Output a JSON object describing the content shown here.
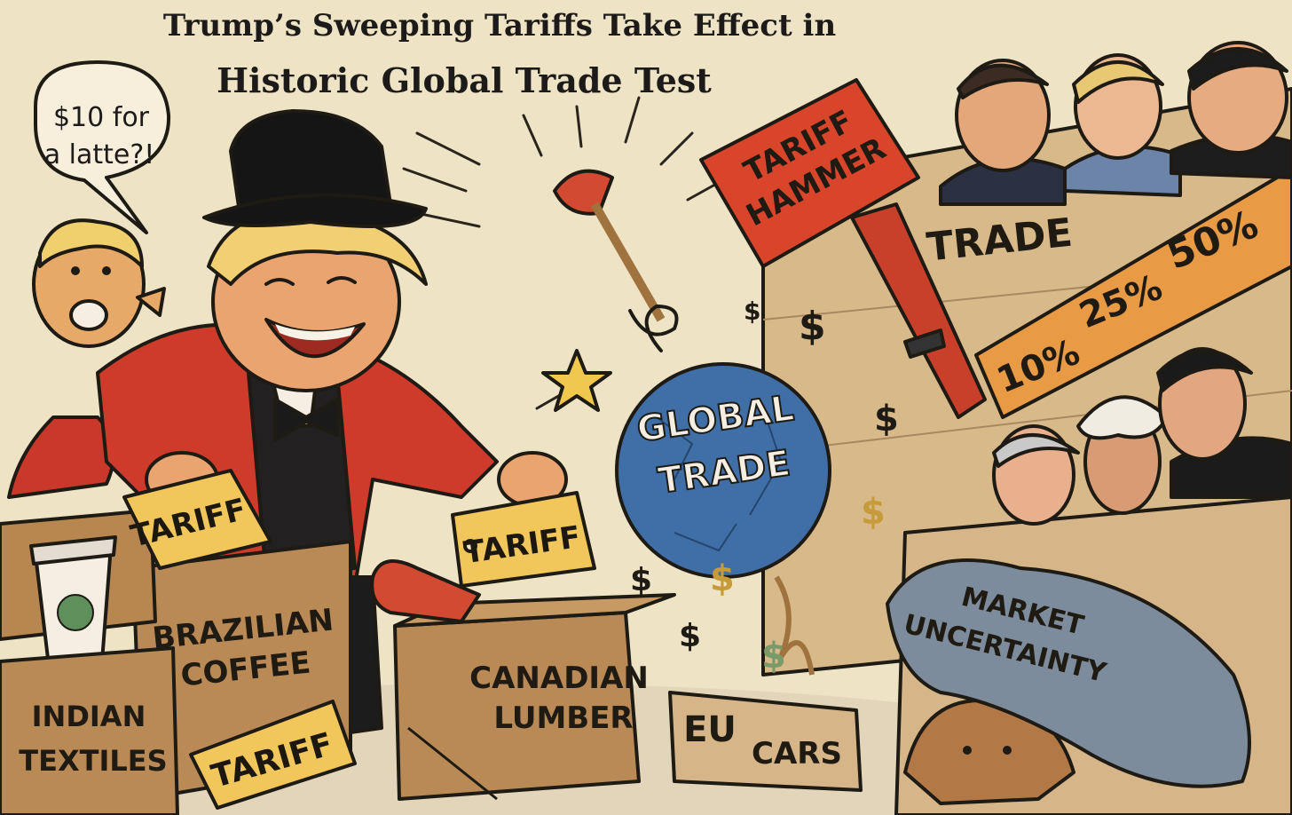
{
  "headline": {
    "line1": "Trump’s Sweeping Tariffs Take Effect in",
    "line2": "Historic Global Trade Test"
  },
  "speech_bubble": {
    "line1": "$10 for",
    "line2": "a latte?!"
  },
  "hammer": {
    "line1": "TARIFF",
    "line2": "HAMMER"
  },
  "wall": {
    "trade_label": "TRADE",
    "rates": [
      "10%",
      "25%",
      "50%"
    ]
  },
  "wrecking_ball": {
    "line1": "GLOBAL",
    "line2": "TRADE"
  },
  "tags": {
    "tag_in_hand": "TARIFF",
    "tag_center": "TARIFF",
    "tag_bottom": "TARIFF"
  },
  "crates": {
    "indian": {
      "line1": "INDIAN",
      "line2": "TEXTILES"
    },
    "brazilian": {
      "line1": "BRAZILIAN",
      "line2": "COFFEE"
    },
    "canadian": {
      "line1": "CANADIAN",
      "line2": "LUMBER"
    },
    "eu": {
      "line1": "EU",
      "line2": "CARS"
    }
  },
  "blanket": {
    "line1": "MARKET",
    "line2": "UNCERTAINTY"
  },
  "currency_symbol": "$",
  "colors": {
    "background": "#efe3c6",
    "hammer_red": "#d9452b",
    "globe_blue": "#3f6fa6",
    "crate_brown": "#b98a55",
    "tag_yellow": "#f1c65a",
    "wall_tan": "#d8b98a",
    "stripe_orange": "#e89a44",
    "blanket_grey": "#7d8c9c"
  }
}
